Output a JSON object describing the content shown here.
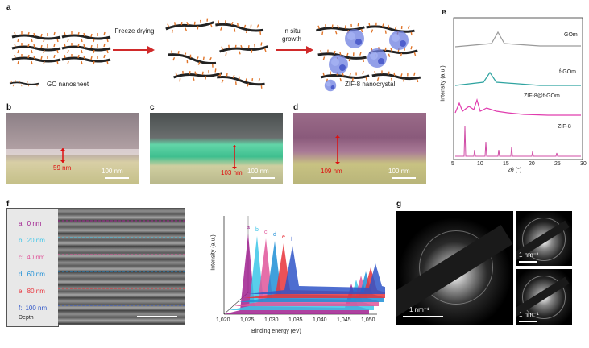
{
  "panel_a": {
    "label": "a",
    "step1": "Freeze drying",
    "step2": "In situ growth",
    "legend_go": "GO nanosheet",
    "legend_zif": "ZIF-8 nanocrystal"
  },
  "panel_b": {
    "label": "b",
    "thickness": "59 nm",
    "scale": "100 nm"
  },
  "panel_c": {
    "label": "c",
    "thickness": "103 nm",
    "scale": "100 nm"
  },
  "panel_d": {
    "label": "d",
    "thickness": "109 nm",
    "scale": "100 nm"
  },
  "panel_e": {
    "label": "e",
    "ylabel": "Intensity (a.u.)",
    "xlabel": "2θ (°)",
    "xticks": [
      "5",
      "10",
      "15",
      "20",
      "25",
      "30"
    ],
    "traces": [
      "GOm",
      "f-GOm",
      "ZIF-8@f-GOm",
      "ZIF-8"
    ]
  },
  "panel_f": {
    "label": "f",
    "depths": [
      {
        "letter": "a:",
        "value": "0 nm"
      },
      {
        "letter": "b:",
        "value": "20 nm"
      },
      {
        "letter": "c:",
        "value": "40 nm"
      },
      {
        "letter": "d:",
        "value": "60 nm"
      },
      {
        "letter": "e:",
        "value": "80 nm"
      },
      {
        "letter": "f:",
        "value": "100 nm"
      }
    ],
    "depth_title": "Depth",
    "ylabel": "Intensity (a.u.)",
    "xlabel": "Binding energy (eV)",
    "xticks": [
      "1,020",
      "1,025",
      "1,030",
      "1,035",
      "1,040",
      "1,045",
      "1,050"
    ],
    "peak_letters": [
      "a",
      "b",
      "c",
      "d",
      "e",
      "f"
    ]
  },
  "panel_g": {
    "label": "g",
    "scale_main": "1 nm⁻¹",
    "scale_top": "1 nm⁻¹",
    "scale_bottom": "1 nm⁻¹"
  },
  "colors": {
    "depth": [
      "#a0208f",
      "#3bc5e8",
      "#e0559a",
      "#1f8fd6",
      "#e8323a",
      "#2f55c8"
    ]
  }
}
